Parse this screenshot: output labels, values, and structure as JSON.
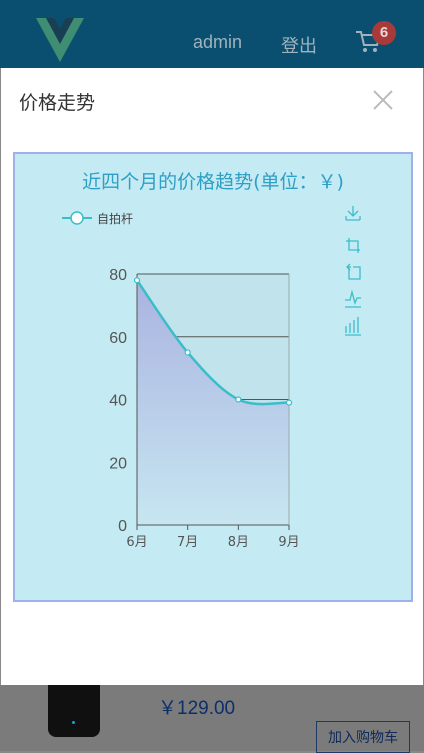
{
  "header": {
    "logo_icon": "vue-logo-icon",
    "admin_label": "admin",
    "logout_label": "登出",
    "cart_icon": "cart-icon",
    "cart_count": "6"
  },
  "modal": {
    "title": "价格走势",
    "close_icon": "close-icon"
  },
  "toolbox": {
    "icons": [
      "save-image-icon",
      "zoom-icon",
      "zoom-reset-icon",
      "line-chart-icon",
      "bar-chart-icon"
    ]
  },
  "chart_data": {
    "type": "area",
    "title": "近四个月的价格趋势(单位：￥)",
    "categories": [
      "6月",
      "7月",
      "8月",
      "9月"
    ],
    "series": [
      {
        "name": "自拍杆",
        "values": [
          78,
          55,
          40,
          39
        ]
      }
    ],
    "y_ticks": [
      "0",
      "20",
      "40",
      "60",
      "80"
    ],
    "ylim": [
      0,
      80
    ],
    "grid": true,
    "legend": "top-left",
    "colors": {
      "line": "#3bbdc9",
      "area_top": "#aab3e0",
      "area_bottom": "#c7e6f1"
    }
  },
  "product": {
    "price": "￥129.00",
    "add_to_cart_label": "加入购物车"
  }
}
